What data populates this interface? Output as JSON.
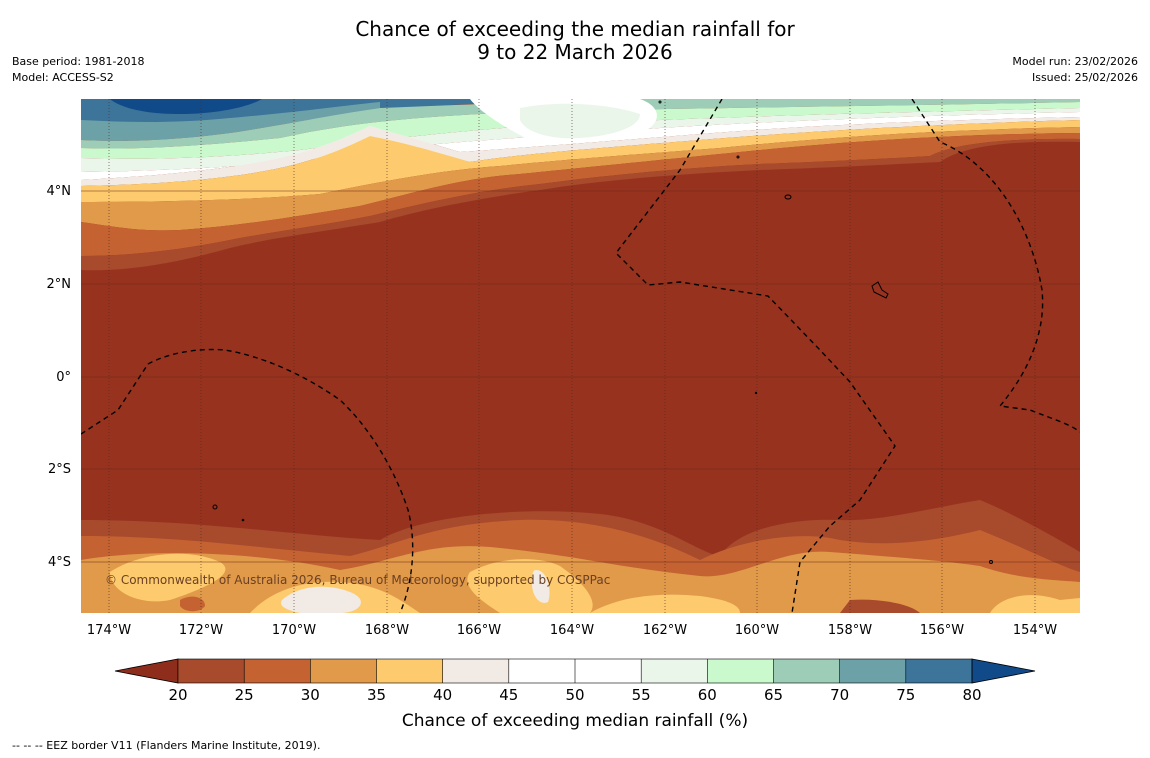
{
  "title": {
    "line1": "Chance of exceeding the median rainfall for",
    "line2": "9 to 22 March 2026"
  },
  "info_left": {
    "base_period": "Base period: 1981-2018",
    "model": "Model: ACCESS-S2"
  },
  "info_right": {
    "model_run": "Model run: 23/02/2026",
    "issued": "Issued: 25/02/2026"
  },
  "map": {
    "lat_labels": [
      "4°N",
      "2°N",
      "0°",
      "2°S",
      "4°S"
    ],
    "lon_labels": [
      "174°W",
      "172°W",
      "170°W",
      "168°W",
      "166°W",
      "164°W",
      "162°W",
      "160°W",
      "158°W",
      "156°W",
      "154°W"
    ],
    "copyright": "© Commonwealth of Australia 2026, Bureau of Meteorology, supported by COSPPac"
  },
  "colorbar": {
    "ticks": [
      "20",
      "25",
      "30",
      "35",
      "40",
      "45",
      "50",
      "55",
      "60",
      "65",
      "70",
      "75",
      "80"
    ],
    "label": "Chance of exceeding median rainfall (%)",
    "colors": {
      "under": "#8e2d1c",
      "b20": "#a84a2c",
      "b25": "#c46232",
      "b30": "#e19a4a",
      "b35": "#fdcb6e",
      "b40": "#f2eae4",
      "b45": "#ffffff",
      "b50": "#ffffff",
      "b55": "#ebf6ea",
      "b60": "#c9f9cd",
      "b65": "#9ecdb7",
      "b70": "#6ca2a7",
      "b75": "#3d7499",
      "over": "#114a88"
    }
  },
  "footnote": "--  --  -- EEZ border V11 (Flanders Marine Institute, 2019)."
}
